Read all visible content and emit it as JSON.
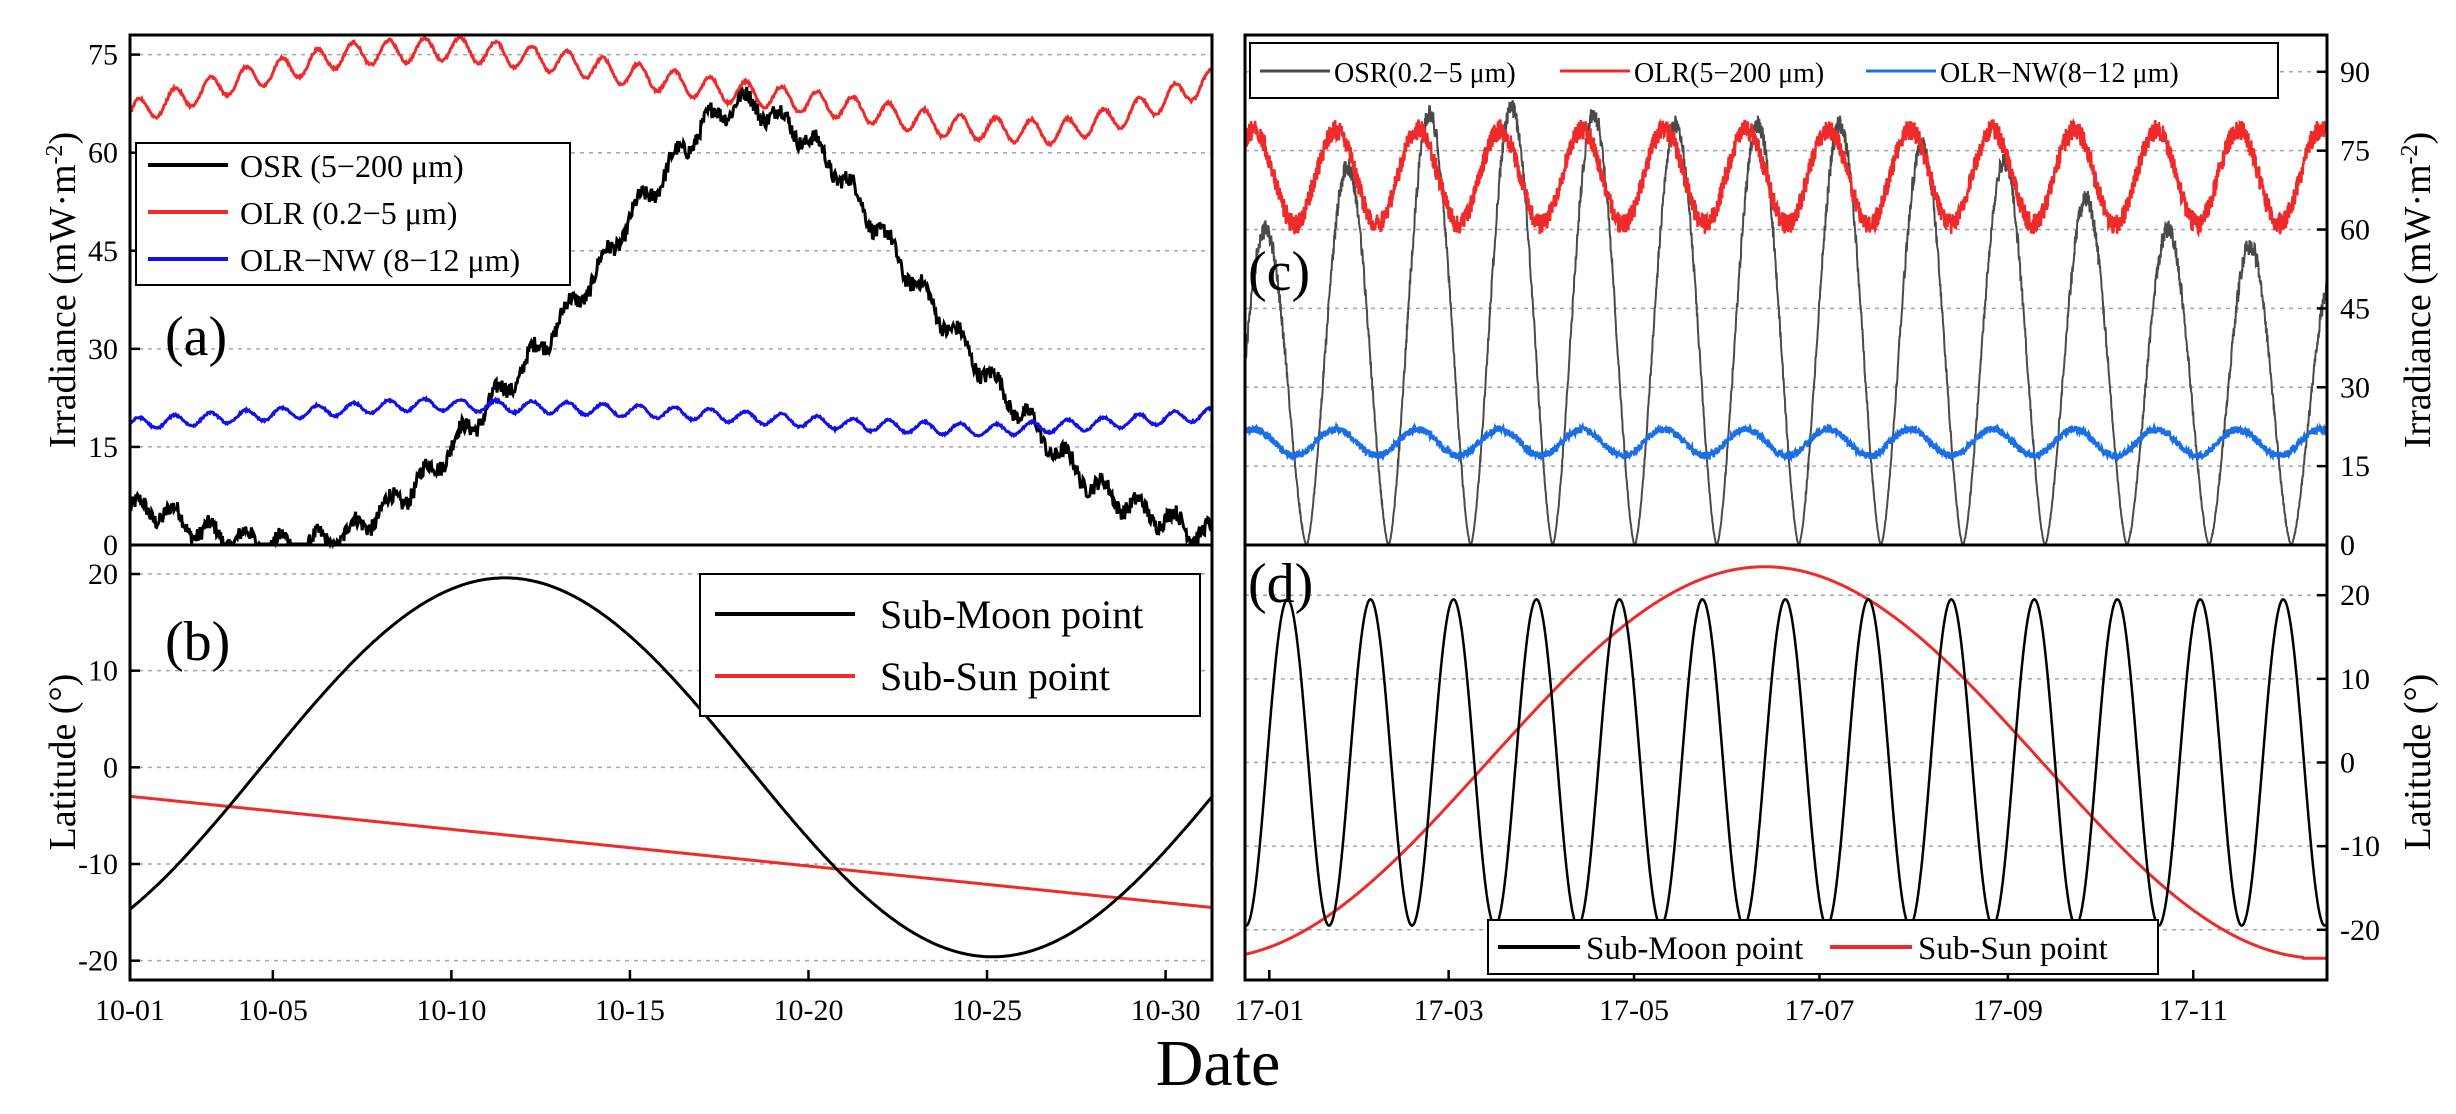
{
  "xlabel": "Date",
  "colors": {
    "osr": "#000000",
    "olr": "#ef2a2a",
    "olr_nw_a": "#1010e8",
    "olr_nw_c": "#1a6fe6",
    "osr_c": "#4a4a4a",
    "moon": "#000000",
    "sun": "#ef2a2a",
    "grid": "#a6a6a6"
  },
  "chart_data": [
    {
      "id": "a",
      "type": "line",
      "panel_label": "(a)",
      "ylabel": "Irradiance (mW·m",
      "ylabel_sup": "-2",
      "ylabel_close": ")",
      "ylim": [
        0,
        78
      ],
      "yticks": [
        "0",
        "15",
        "30",
        "45",
        "60",
        "75"
      ],
      "xrange_days": [
        0,
        30.3
      ],
      "legend_position": "middle-left",
      "series": [
        {
          "name": "OSR (5−200 μm)",
          "color_key": "osr",
          "base": [
            [
              0,
              5.5
            ],
            [
              1,
              5
            ],
            [
              2,
              2
            ],
            [
              3,
              1
            ],
            [
              4,
              0
            ],
            [
              5,
              0
            ],
            [
              6,
              1.5
            ],
            [
              7,
              5
            ],
            [
              8,
              9
            ],
            [
              9,
              15
            ],
            [
              10,
              21
            ],
            [
              11,
              27
            ],
            [
              12,
              34
            ],
            [
              13,
              41
            ],
            [
              14,
              50
            ],
            [
              15,
              57
            ],
            [
              16,
              64
            ],
            [
              17,
              68
            ],
            [
              18,
              66
            ],
            [
              19,
              62
            ],
            [
              20,
              56
            ],
            [
              21,
              48
            ],
            [
              22,
              40
            ],
            [
              23,
              33
            ],
            [
              24,
              26
            ],
            [
              25,
              20
            ],
            [
              26,
              14
            ],
            [
              27,
              9
            ],
            [
              28,
              6
            ],
            [
              29,
              4
            ],
            [
              30,
              2
            ],
            [
              30.3,
              1.5
            ]
          ],
          "noise": 2.5
        },
        {
          "name": "OLR (0.2−5 μm)",
          "color_key": "olr",
          "base": [
            [
              0,
              66
            ],
            [
              3,
              71
            ],
            [
              6,
              75
            ],
            [
              9,
              76
            ],
            [
              12,
              74
            ],
            [
              16,
              70
            ],
            [
              20,
              67
            ],
            [
              23,
              64
            ],
            [
              26,
              63
            ],
            [
              28,
              66
            ],
            [
              30.3,
              71
            ]
          ],
          "noise": 1.8
        },
        {
          "name": "OLR−NW (8−12 μm)",
          "color_key": "olr_nw_a",
          "base": [
            [
              0,
              18.5
            ],
            [
              4,
              20
            ],
            [
              8,
              21.5
            ],
            [
              12,
              21
            ],
            [
              16,
              20
            ],
            [
              20,
              18.5
            ],
            [
              24,
              17.5
            ],
            [
              27,
              18.5
            ],
            [
              30.3,
              20
            ]
          ],
          "noise": 1.0
        }
      ]
    },
    {
      "id": "b",
      "type": "line",
      "panel_label": "(b)",
      "ylabel": "Latitude (°)",
      "ylim": [
        -22,
        23
      ],
      "yticks": [
        "-20",
        "-10",
        "0",
        "10",
        "20"
      ],
      "xticks": [
        "10-01",
        "10-05",
        "10-10",
        "10-15",
        "10-20",
        "10-25",
        "10-30"
      ],
      "xtick_days": [
        0,
        4,
        9,
        14,
        19,
        24,
        29
      ],
      "xrange_days": [
        0,
        30.3
      ],
      "legend_position": "top-right",
      "series": [
        {
          "name": "Sub-Moon point",
          "color_key": "moon",
          "amplitude": 19.6,
          "period_days": 27.3,
          "peak_day": 10.5
        },
        {
          "name": "Sub-Sun point",
          "color_key": "sun",
          "start": -3,
          "end": -14.5
        }
      ]
    },
    {
      "id": "c",
      "type": "line",
      "panel_label": "(c)",
      "ylabel": "Irradiance (mW·m",
      "ylabel_sup": "-2",
      "ylabel_close": ")",
      "ylim": [
        0,
        97
      ],
      "yticks": [
        "0",
        "15",
        "30",
        "45",
        "60",
        "75",
        "90"
      ],
      "xrange_days": [
        0,
        360
      ],
      "legend_position": "top",
      "series": [
        {
          "name": "OSR(0.2−5 μm)",
          "color_key": "osr_c",
          "peaks": [
            60,
            72,
            82,
            83,
            82,
            80,
            80,
            80,
            76,
            73,
            66,
            60,
            57,
            51
          ]
        },
        {
          "name": "OLR(5−200 μm)",
          "color_key": "olr",
          "mean": 70,
          "amplitude": 9
        },
        {
          "name": "OLR−NW(8−12 μm)",
          "color_key": "olr_nw_c",
          "mean": 19.5,
          "amplitude": 2.5
        }
      ]
    },
    {
      "id": "d",
      "type": "line",
      "panel_label": "(d)",
      "ylabel": "Latitude (°)",
      "ylim": [
        -26,
        26
      ],
      "yticks": [
        "-20",
        "-10",
        "0",
        "10",
        "20"
      ],
      "xticks": [
        "17-01",
        "17-03",
        "17-05",
        "17-07",
        "17-09",
        "17-11"
      ],
      "xtick_days": [
        0,
        59,
        120,
        181,
        243,
        304
      ],
      "xrange_days": [
        -8,
        348
      ],
      "legend_position": "bottom",
      "series": [
        {
          "name": "Sub-Moon point",
          "color_key": "moon",
          "amplitude": 19.5,
          "period_days": 27.3
        },
        {
          "name": "Sub-Sun point",
          "color_key": "sun",
          "amplitude": 23.4,
          "peak_day": 163
        }
      ]
    }
  ]
}
